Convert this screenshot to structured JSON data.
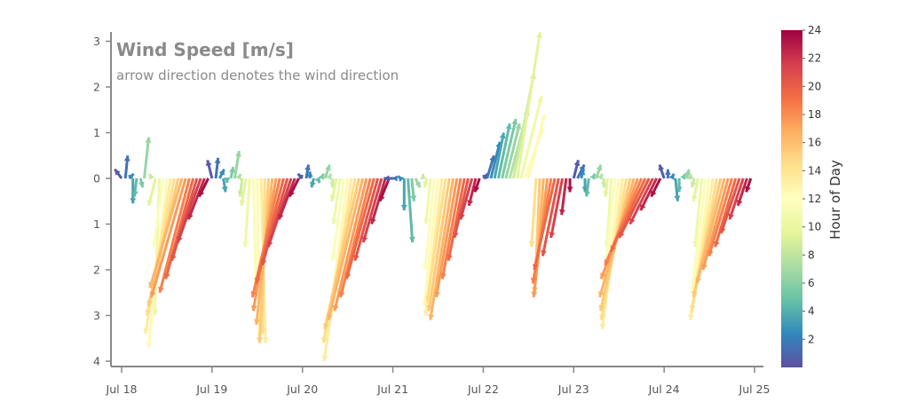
{
  "chart_data": {
    "type": "quiver",
    "title": "Wind Speed [m/s]",
    "subtitle": "arrow direction denotes the wind direction",
    "x_tick_labels": [
      "Jul 18",
      "Jul 19",
      "Jul 20",
      "Jul 21",
      "Jul 22",
      "Jul 23",
      "Jul 24",
      "Jul 25"
    ],
    "x_tick_days": [
      0,
      1,
      2,
      3,
      4,
      5,
      6,
      7
    ],
    "y_tick_labels": [
      "3",
      "2",
      "1",
      "0",
      "1",
      "2",
      "3",
      "4"
    ],
    "y_tick_values": [
      3,
      2,
      1,
      0,
      -1,
      -2,
      -3,
      -4
    ],
    "xlim_days": [
      -0.12,
      7.12
    ],
    "ylim": [
      -4.15,
      3.2
    ],
    "grid": false,
    "colorbar": {
      "label": "Hour of Day",
      "colormap": "Spectral_r",
      "range": [
        0,
        24
      ],
      "tick_labels": [
        "2",
        "4",
        "6",
        "8",
        "10",
        "12",
        "14",
        "16",
        "18",
        "20",
        "22",
        "24"
      ],
      "tick_values": [
        2,
        4,
        6,
        8,
        10,
        12,
        14,
        16,
        18,
        20,
        22,
        24
      ]
    },
    "series": [
      {
        "day_label": "Jul 18",
        "day_index": 0,
        "hours": [
          0,
          1,
          2,
          3,
          4,
          5,
          6,
          7,
          8,
          9,
          10,
          11,
          12,
          13,
          14,
          15,
          16,
          17,
          18,
          19,
          20,
          21,
          22,
          23
        ],
        "u": [
          -0.15,
          0.05,
          0.1,
          0.0,
          -0.05,
          0.05,
          0.1,
          0.0,
          -0.05,
          -0.15,
          -0.1,
          -0.2,
          -0.4,
          -0.55,
          -0.6,
          -0.65,
          -0.7,
          -0.75,
          -0.65,
          -0.6,
          -0.55,
          -0.5,
          -0.35,
          -0.2
        ],
        "v": [
          0.2,
          0.5,
          0.1,
          -0.55,
          -0.4,
          -0.2,
          0.9,
          0.0,
          0.1,
          -0.6,
          -3.0,
          -1.5,
          -3.7,
          -3.4,
          -3.0,
          -2.8,
          -2.4,
          -2.6,
          -2.5,
          -2.2,
          -1.8,
          -1.4,
          -0.9,
          -0.4
        ]
      },
      {
        "day_label": "Jul 19",
        "day_index": 1,
        "hours": [
          0,
          1,
          2,
          3,
          4,
          5,
          6,
          7,
          8,
          9,
          10,
          11,
          12,
          13,
          14,
          15,
          16,
          17,
          18,
          19,
          20,
          21,
          22,
          23
        ],
        "u": [
          -0.1,
          0.05,
          0.1,
          0.05,
          0.0,
          0.05,
          0.1,
          0.05,
          -0.05,
          -0.1,
          -0.1,
          0.05,
          0.05,
          0.1,
          -0.05,
          -0.2,
          -0.35,
          -0.5,
          -0.6,
          -0.6,
          -0.55,
          -0.5,
          -0.35,
          -0.2
        ],
        "v": [
          0.4,
          0.45,
          0.2,
          -0.3,
          -0.1,
          0.25,
          0.6,
          0.1,
          -0.4,
          -0.6,
          -1.5,
          -2.3,
          -3.5,
          -3.6,
          -3.4,
          -3.6,
          -3.2,
          -2.9,
          -2.6,
          -2.3,
          -1.9,
          -1.5,
          -0.9,
          -0.4
        ]
      },
      {
        "day_label": "Jul 20",
        "day_index": 2,
        "hours": [
          0,
          1,
          2,
          3,
          4,
          5,
          6,
          7,
          8,
          9,
          10,
          11,
          12,
          13,
          14,
          15,
          16,
          17,
          18,
          19,
          20,
          21,
          22,
          23
        ],
        "u": [
          -0.1,
          0.05,
          0.0,
          -0.05,
          0.05,
          0.05,
          0.1,
          0.05,
          0.0,
          -0.1,
          -0.15,
          -0.25,
          -0.45,
          -0.6,
          -0.7,
          -0.75,
          -0.75,
          -0.7,
          -0.65,
          -0.6,
          -0.5,
          -0.4,
          -0.3,
          -0.2
        ],
        "v": [
          0.1,
          0.3,
          0.15,
          -0.2,
          -0.1,
          0.1,
          0.3,
          0.1,
          -0.2,
          -0.5,
          -1.0,
          -1.8,
          -3.5,
          -4.0,
          -3.6,
          -3.3,
          -3.1,
          -2.9,
          -2.6,
          -2.2,
          -1.8,
          -1.4,
          -1.0,
          -0.5
        ]
      },
      {
        "day_label": "Jul 21",
        "day_index": 3,
        "hours": [
          0,
          1,
          2,
          3,
          4,
          5,
          6,
          7,
          8,
          9,
          10,
          11,
          12,
          13,
          14,
          15,
          16,
          17,
          18,
          19,
          20,
          21,
          22,
          23
        ],
        "u": [
          -0.2,
          -0.1,
          -0.05,
          0.0,
          0.1,
          0.05,
          0.1,
          0.0,
          0.0,
          -0.05,
          -0.1,
          -0.2,
          -0.3,
          -0.35,
          -0.4,
          -0.45,
          -0.5,
          -0.45,
          -0.4,
          -0.35,
          -0.3,
          -0.25,
          -0.15,
          -0.1
        ],
        "v": [
          0.0,
          0.0,
          0.05,
          -0.7,
          -1.4,
          -0.5,
          -0.2,
          0.0,
          0.1,
          -0.2,
          -1.0,
          -2.0,
          -2.8,
          -3.0,
          -2.7,
          -2.9,
          -3.1,
          -2.6,
          -2.2,
          -1.8,
          -1.3,
          -0.9,
          -0.6,
          -0.3
        ]
      },
      {
        "day_label": "Jul 22",
        "day_index": 4,
        "hours": [
          0,
          1,
          2,
          3,
          4,
          5,
          6,
          7,
          8,
          9,
          10,
          11,
          12,
          13,
          14,
          15,
          16,
          17,
          18,
          19,
          20,
          21,
          22,
          23
        ],
        "u": [
          0.1,
          0.15,
          0.2,
          0.2,
          0.25,
          0.3,
          0.3,
          0.4,
          0.45,
          0.5,
          0.45,
          0.4,
          0.35,
          0.0,
          -0.1,
          -0.1,
          -0.2,
          -0.3,
          -0.4,
          -0.45,
          -0.35,
          -0.25,
          -0.1,
          0.0
        ],
        "v": [
          0.1,
          0.5,
          0.8,
          1.0,
          1.2,
          1.3,
          1.2,
          1.5,
          2.3,
          3.2,
          1.8,
          1.1,
          1.4,
          0.0,
          -1.5,
          -2.2,
          -2.5,
          -2.6,
          -2.3,
          -2.0,
          -1.7,
          -1.3,
          -0.8,
          -0.3
        ]
      },
      {
        "day_label": "Jul 23",
        "day_index": 5,
        "hours": [
          0,
          1,
          2,
          3,
          4,
          5,
          6,
          7,
          8,
          9,
          10,
          11,
          12,
          13,
          14,
          15,
          16,
          17,
          18,
          19,
          20,
          21,
          22,
          23
        ],
        "u": [
          0.1,
          0.15,
          0.05,
          0.0,
          -0.05,
          0.05,
          0.1,
          0.05,
          0.0,
          -0.05,
          -0.1,
          -0.25,
          -0.35,
          -0.45,
          -0.55,
          -0.65,
          -0.75,
          -0.8,
          -0.8,
          -0.75,
          -0.65,
          -0.5,
          -0.35,
          -0.2
        ],
        "v": [
          0.4,
          0.3,
          0.2,
          -0.3,
          -0.4,
          0.1,
          0.3,
          0.1,
          -0.2,
          -0.4,
          -1.5,
          -2.3,
          -3.0,
          -3.3,
          -3.1,
          -2.9,
          -2.6,
          -2.2,
          -1.9,
          -1.6,
          -1.3,
          -1.0,
          -0.7,
          -0.4
        ]
      },
      {
        "day_label": "Jul 24",
        "day_index": 6,
        "hours": [
          0,
          1,
          2,
          3,
          4,
          5,
          6,
          7,
          8,
          9,
          10,
          11,
          12,
          13,
          14,
          15,
          16,
          17,
          18,
          19,
          20,
          21,
          22,
          23
        ],
        "u": [
          -0.1,
          0.0,
          0.05,
          0.05,
          0.0,
          0.05,
          0.05,
          0.0,
          -0.05,
          -0.1,
          -0.15,
          -0.3,
          -0.4,
          -0.5,
          -0.55,
          -0.6,
          -0.6,
          -0.55,
          -0.5,
          -0.45,
          -0.4,
          -0.3,
          -0.2,
          -0.1
        ],
        "v": [
          0.3,
          0.2,
          0.1,
          -0.5,
          -0.3,
          0.1,
          0.2,
          0.1,
          -0.2,
          -0.5,
          -1.5,
          -2.5,
          -3.0,
          -3.1,
          -2.9,
          -2.6,
          -2.3,
          -2.0,
          -1.7,
          -1.5,
          -1.2,
          -0.9,
          -0.6,
          -0.3
        ]
      }
    ]
  }
}
